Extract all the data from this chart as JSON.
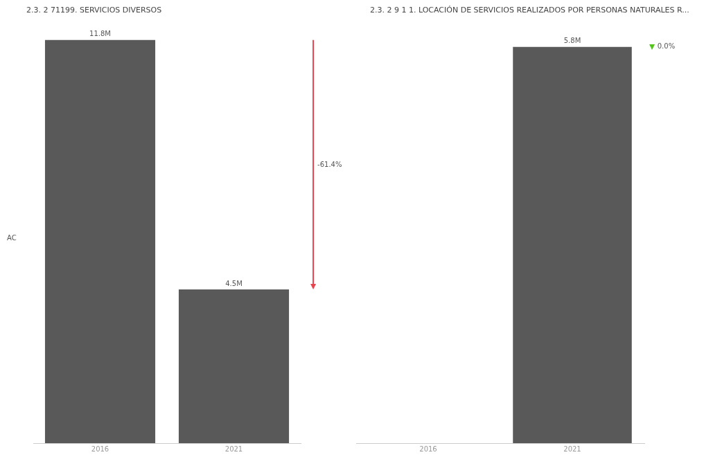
{
  "chart_data": [
    {
      "type": "bar",
      "title": "2.3. 2 71199. SERVICIOS DIVERSOS",
      "ylabel": "AC",
      "categories": [
        "2016",
        "2021"
      ],
      "values": [
        11.8,
        4.5
      ],
      "value_labels": [
        "11.8M",
        "4.5M"
      ],
      "color": "#595959",
      "annotations": [
        "-61.4%"
      ],
      "grid": false,
      "legend": false
    },
    {
      "type": "bar",
      "title": "2.3. 2 9 1 1. LOCACIÓN DE SERVICIOS REALIZADOS POR PERSONAS NATURALES R...",
      "categories": [
        "2016",
        "2021"
      ],
      "values": [
        null,
        5.8
      ],
      "value_labels": [
        null,
        "5.8M"
      ],
      "color": "#595959",
      "annotations": [
        "0.0%"
      ],
      "grid": false,
      "legend": false
    }
  ]
}
